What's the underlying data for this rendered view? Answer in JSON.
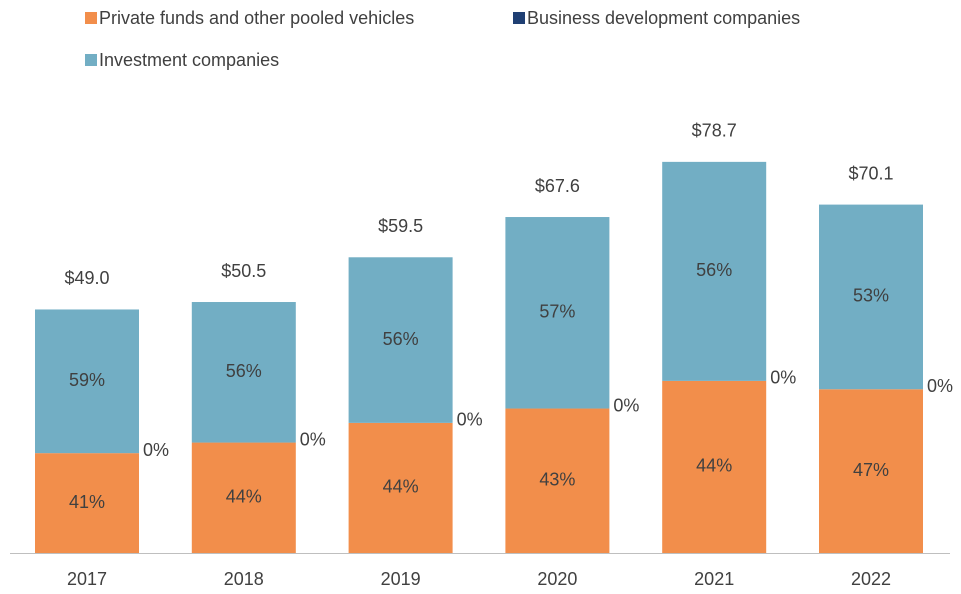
{
  "chart_data": {
    "type": "bar",
    "categories": [
      "2017",
      "2018",
      "2019",
      "2020",
      "2021",
      "2022"
    ],
    "totals": [
      49.0,
      50.5,
      59.5,
      67.6,
      78.7,
      70.1
    ],
    "total_labels": [
      "$49.0",
      "$50.5",
      "$59.5",
      "$67.6",
      "$78.7",
      "$70.1"
    ],
    "series": [
      {
        "name": "Private funds and other pooled vehicles",
        "color": "#f28e4b",
        "values": [
          41,
          44,
          44,
          43,
          44,
          47
        ],
        "value_labels": [
          "41%",
          "44%",
          "44%",
          "43%",
          "44%",
          "47%"
        ]
      },
      {
        "name": "Business development companies",
        "color": "#1f3f73",
        "values": [
          0,
          0,
          0,
          0,
          0,
          0
        ],
        "value_labels": [
          "0%",
          "0%",
          "0%",
          "0%",
          "0%",
          "0%"
        ]
      },
      {
        "name": "Investment companies",
        "color": "#72aec4",
        "values": [
          59,
          56,
          56,
          57,
          56,
          53
        ],
        "value_labels": [
          "59%",
          "56%",
          "56%",
          "57%",
          "56%",
          "53%"
        ]
      }
    ]
  }
}
